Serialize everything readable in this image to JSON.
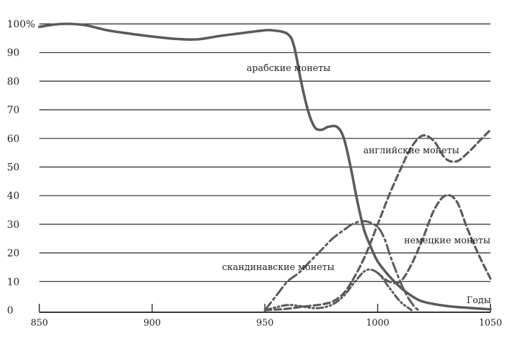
{
  "chart_data": {
    "type": "line",
    "xlabel": "Годы",
    "ylabel": "",
    "xlim": [
      850,
      1050
    ],
    "ylim": [
      0,
      100
    ],
    "xticks": [
      "850",
      "900",
      "950",
      "1000",
      "1050"
    ],
    "yticks": [
      "0",
      "10",
      "20",
      "30",
      "40",
      "50",
      "60",
      "70",
      "80",
      "90",
      "100%"
    ],
    "grid": "horizontal",
    "series": [
      {
        "name": "арабские монеты",
        "style": "solid",
        "color": "#5a5a5a",
        "x": [
          850,
          860,
          870,
          880,
          890,
          900,
          910,
          920,
          930,
          940,
          948,
          953,
          960,
          963,
          966,
          969,
          972,
          975,
          978,
          982,
          985,
          988,
          991,
          994,
          997,
          1000,
          1005,
          1010,
          1015,
          1020,
          1030,
          1040,
          1050
        ],
        "y": [
          99,
          100,
          99.6,
          97.8,
          96.6,
          95.6,
          94.8,
          94.6,
          95.8,
          96.8,
          97.6,
          97.8,
          96.5,
          92,
          80,
          70,
          64,
          63,
          64,
          64,
          60,
          50,
          38,
          28,
          22,
          17,
          12,
          8,
          5,
          3,
          1.5,
          0.8,
          0.3
        ]
      },
      {
        "name": "английские монеты",
        "style": "dashed",
        "color": "#5a5a5a",
        "x": [
          950,
          955,
          960,
          965,
          970,
          975,
          980,
          985,
          990,
          995,
          1000,
          1005,
          1010,
          1015,
          1020,
          1025,
          1030,
          1035,
          1040,
          1045,
          1050
        ],
        "y": [
          0,
          0.2,
          0.5,
          1,
          1.5,
          2,
          3,
          6,
          12,
          20,
          30,
          40,
          49,
          57,
          61,
          59,
          53,
          52,
          55,
          59,
          63
        ]
      },
      {
        "name": "немецкие монеты",
        "style": "dashed",
        "color": "#5a5a5a",
        "x": [
          1000,
          1005,
          1010,
          1015,
          1020,
          1025,
          1030,
          1035,
          1040,
          1045,
          1050
        ],
        "y": [
          13,
          10,
          10,
          16,
          25,
          35,
          40,
          38,
          28,
          19,
          11
        ]
      },
      {
        "name": "скандинавские монеты",
        "style": "dash-dot",
        "color": "#5a5a5a",
        "x": [
          950,
          955,
          960,
          965,
          970,
          975,
          980,
          985,
          990,
          995,
          1000,
          1003,
          1006,
          1010,
          1013,
          1016,
          1018
        ],
        "y": [
          0,
          5,
          10,
          13,
          17,
          21,
          25,
          28,
          30.5,
          31,
          29,
          25,
          18,
          10,
          5,
          1.5,
          0
        ]
      },
      {
        "name": "",
        "style": "dash-dot-dot",
        "color": "#5a5a5a",
        "x": [
          950,
          955,
          960,
          965,
          970,
          975,
          980,
          985,
          990,
          995,
          1000,
          1005,
          1010,
          1015
        ],
        "y": [
          0,
          1,
          1.8,
          1.5,
          0.8,
          0.8,
          2,
          5,
          10,
          14,
          13,
          8,
          3,
          0
        ]
      }
    ],
    "labels": {
      "arabic": "арабские монеты",
      "english": "английские монеты",
      "german": "немецкие монеты",
      "scandinavian": "скандинавские монеты",
      "years": "Годы"
    }
  }
}
